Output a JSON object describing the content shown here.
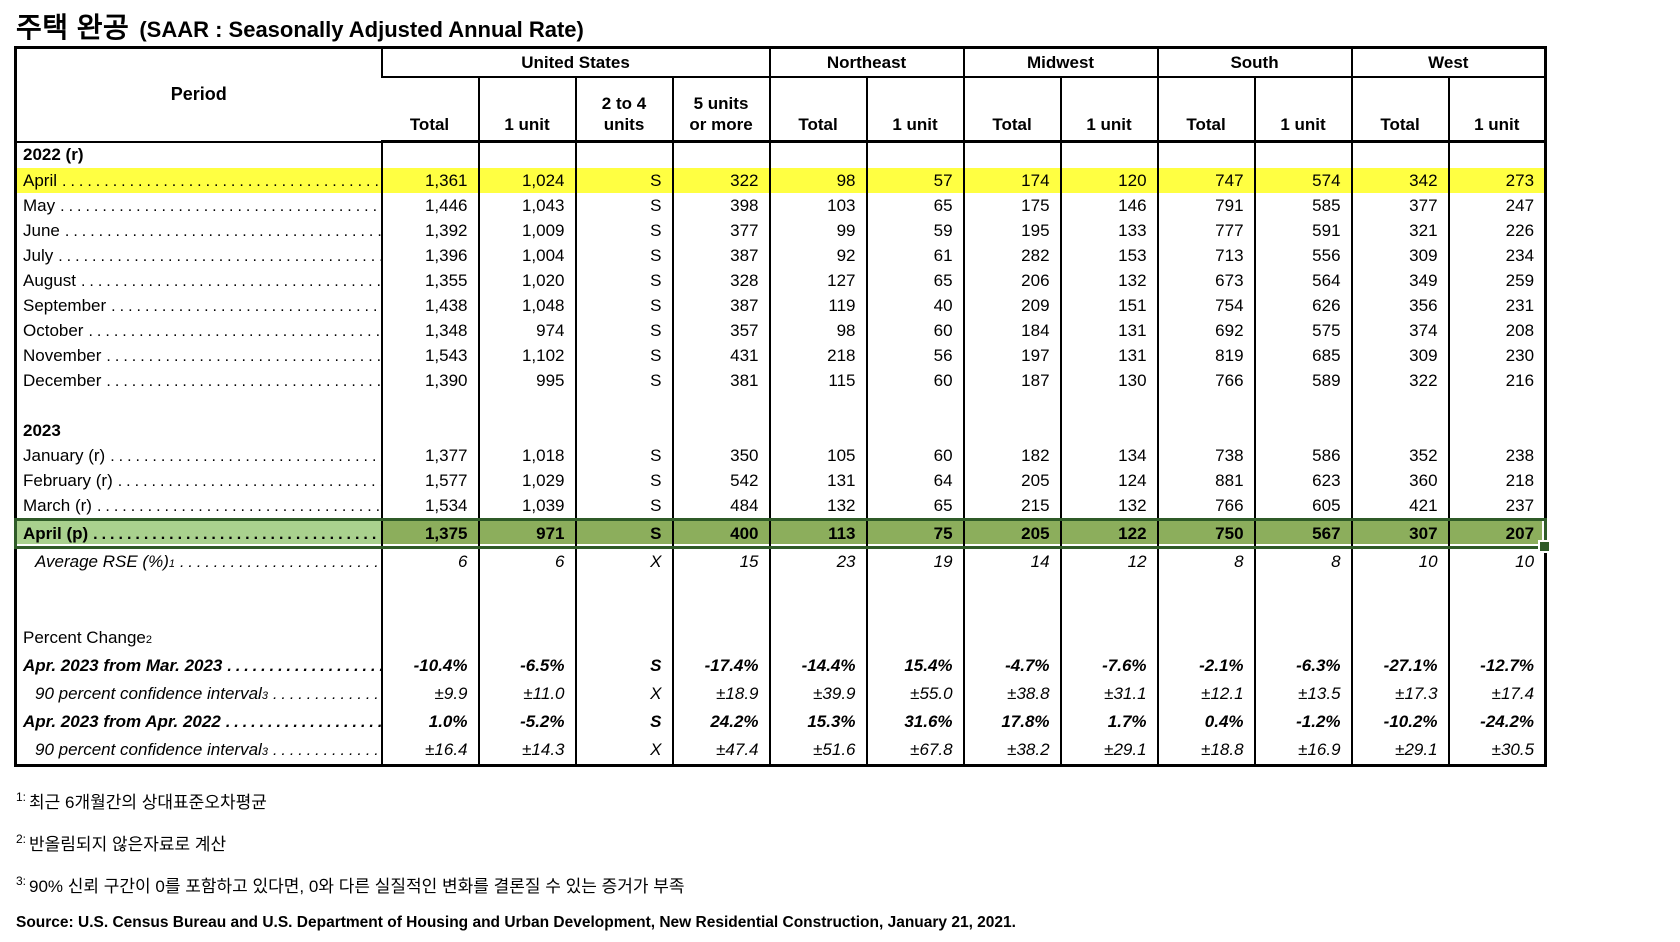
{
  "title": {
    "main": "주택 완공",
    "sub": "(SAAR : Seasonally Adjusted Annual Rate)"
  },
  "table": {
    "period_header": "Period",
    "groups": [
      {
        "label": "United States",
        "span": "4"
      },
      {
        "label": "Northeast",
        "span": "2"
      },
      {
        "label": "Midwest",
        "span": "2"
      },
      {
        "label": "South",
        "span": "2"
      },
      {
        "label": "West",
        "span": "2"
      }
    ],
    "subheaders": [
      "Total",
      "1 unit",
      "2 to 4\nunits",
      "5 units\nor more",
      "Total",
      "1 unit",
      "Total",
      "1 unit",
      "Total",
      "1 unit",
      "Total",
      "1 unit"
    ],
    "rows": [
      {
        "type": "section",
        "label": "2022 (r)"
      },
      {
        "type": "data",
        "label": "April",
        "highlight": "yellow",
        "values": [
          "1,361",
          "1,024",
          "S",
          "322",
          "98",
          "57",
          "174",
          "120",
          "747",
          "574",
          "342",
          "273"
        ]
      },
      {
        "type": "data",
        "label": "May",
        "values": [
          "1,446",
          "1,043",
          "S",
          "398",
          "103",
          "65",
          "175",
          "146",
          "791",
          "585",
          "377",
          "247"
        ]
      },
      {
        "type": "data",
        "label": "June",
        "values": [
          "1,392",
          "1,009",
          "S",
          "377",
          "99",
          "59",
          "195",
          "133",
          "777",
          "591",
          "321",
          "226"
        ]
      },
      {
        "type": "data",
        "label": "July",
        "values": [
          "1,396",
          "1,004",
          "S",
          "387",
          "92",
          "61",
          "282",
          "153",
          "713",
          "556",
          "309",
          "234"
        ]
      },
      {
        "type": "data",
        "label": "August",
        "values": [
          "1,355",
          "1,020",
          "S",
          "328",
          "127",
          "65",
          "206",
          "132",
          "673",
          "564",
          "349",
          "259"
        ]
      },
      {
        "type": "data",
        "label": "September",
        "values": [
          "1,438",
          "1,048",
          "S",
          "387",
          "119",
          "40",
          "209",
          "151",
          "754",
          "626",
          "356",
          "231"
        ]
      },
      {
        "type": "data",
        "label": "October",
        "values": [
          "1,348",
          "974",
          "S",
          "357",
          "98",
          "60",
          "184",
          "131",
          "692",
          "575",
          "374",
          "208"
        ]
      },
      {
        "type": "data",
        "label": "November",
        "values": [
          "1,543",
          "1,102",
          "S",
          "431",
          "218",
          "56",
          "197",
          "131",
          "819",
          "685",
          "309",
          "230"
        ]
      },
      {
        "type": "data",
        "label": "December",
        "values": [
          "1,390",
          "995",
          "S",
          "381",
          "115",
          "60",
          "187",
          "130",
          "766",
          "589",
          "322",
          "216"
        ]
      },
      {
        "type": "spacer"
      },
      {
        "type": "section",
        "label": "2023"
      },
      {
        "type": "data",
        "label": "January (r)",
        "values": [
          "1,377",
          "1,018",
          "S",
          "350",
          "105",
          "60",
          "182",
          "134",
          "738",
          "586",
          "352",
          "238"
        ]
      },
      {
        "type": "data",
        "label": "February (r)",
        "values": [
          "1,577",
          "1,029",
          "S",
          "542",
          "131",
          "64",
          "205",
          "124",
          "881",
          "623",
          "360",
          "218"
        ]
      },
      {
        "type": "data",
        "label": "March (r)",
        "values": [
          "1,534",
          "1,039",
          "S",
          "484",
          "132",
          "65",
          "215",
          "132",
          "766",
          "605",
          "421",
          "237"
        ]
      },
      {
        "type": "data",
        "label": "April (p)",
        "highlight": "green",
        "values": [
          "1,375",
          "971",
          "S",
          "400",
          "113",
          "75",
          "205",
          "122",
          "750",
          "567",
          "307",
          "207"
        ]
      },
      {
        "type": "rse",
        "label": "Average RSE (%)",
        "sup": "1",
        "values": [
          "6",
          "6",
          "X",
          "15",
          "23",
          "19",
          "14",
          "12",
          "8",
          "8",
          "10",
          "10"
        ]
      },
      {
        "type": "spacer"
      },
      {
        "type": "spacer"
      },
      {
        "type": "pctlabel",
        "label": "Percent Change",
        "sup": "2"
      },
      {
        "type": "pct",
        "label": "Apr. 2023 from Mar. 2023",
        "values": [
          "-10.4%",
          "-6.5%",
          "S",
          "-17.4%",
          "-14.4%",
          "15.4%",
          "-4.7%",
          "-7.6%",
          "-2.1%",
          "-6.3%",
          "-27.1%",
          "-12.7%"
        ]
      },
      {
        "type": "ci",
        "label": "90 percent confidence interval",
        "sup": "3",
        "values": [
          "±9.9",
          "±11.0",
          "X",
          "±18.9",
          "±39.9",
          "±55.0",
          "±38.8",
          "±31.1",
          "±12.1",
          "±13.5",
          "±17.3",
          "±17.4"
        ]
      },
      {
        "type": "pct",
        "label": "Apr. 2023 from Apr. 2022",
        "values": [
          "1.0%",
          "-5.2%",
          "S",
          "24.2%",
          "15.3%",
          "31.6%",
          "17.8%",
          "1.7%",
          "0.4%",
          "-1.2%",
          "-10.2%",
          "-24.2%"
        ]
      },
      {
        "type": "ci",
        "label": "90 percent confidence interval",
        "sup": "3",
        "values": [
          "±16.4",
          "±14.3",
          "X",
          "±47.4",
          "±51.6",
          "±67.8",
          "±38.2",
          "±29.1",
          "±18.8",
          "±16.9",
          "±29.1",
          "±30.5"
        ]
      }
    ]
  },
  "footnotes": [
    {
      "sup": "1:",
      "text": "최근 6개월간의 상대표준오차평균"
    },
    {
      "sup": "2:",
      "text": "반올림되지 않은자료로 계산"
    },
    {
      "sup": "3:",
      "text": "90% 신뢰 구간이 0를 포함하고 있다면, 0와 다른 실질적인 변화를 결론질 수 있는 증거가 부족"
    }
  ],
  "source": "Source: U.S. Census Bureau and U.S. Department of Housing and Urban Development, New Residential Construction, January 21, 2021.",
  "colors": {
    "highlight_yellow": "#FFFF42",
    "selection_row_fill": "#8CAE5C",
    "active_cell_fill": "#A9D18E",
    "selection_border_green": "#2F5B28",
    "table_border": "#000000"
  }
}
